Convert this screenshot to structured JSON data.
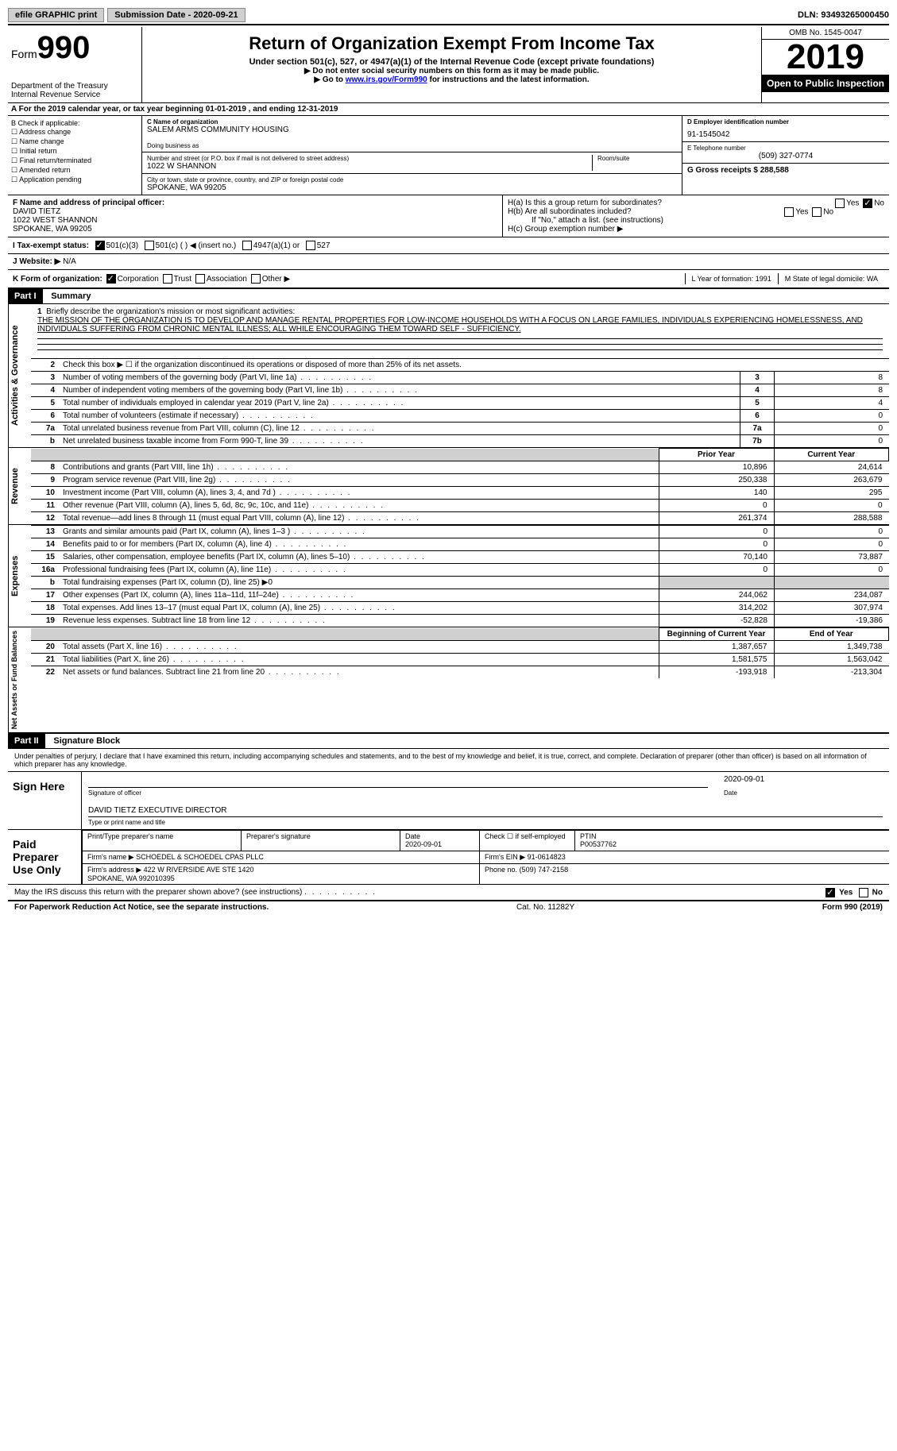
{
  "topbar": {
    "efile": "efile GRAPHIC print",
    "submission_label": "Submission Date - 2020-09-21",
    "dln_label": "DLN: 93493265000450"
  },
  "header": {
    "form_word": "Form",
    "form_num": "990",
    "dept": "Department of the Treasury\nInternal Revenue Service",
    "title": "Return of Organization Exempt From Income Tax",
    "subtitle": "Under section 501(c), 527, or 4947(a)(1) of the Internal Revenue Code (except private foundations)",
    "note1": "▶ Do not enter social security numbers on this form as it may be made public.",
    "note2_pre": "▶ Go to ",
    "note2_link": "www.irs.gov/Form990",
    "note2_post": " for instructions and the latest information.",
    "omb": "OMB No. 1545-0047",
    "year": "2019",
    "inspection": "Open to Public Inspection"
  },
  "row_a": "A For the 2019 calendar year, or tax year beginning 01-01-2019   , and ending 12-31-2019",
  "col_b": {
    "title": "B Check if applicable:",
    "items": [
      "Address change",
      "Name change",
      "Initial return",
      "Final return/terminated",
      "Amended return",
      "Application pending"
    ]
  },
  "block_c": {
    "name_label": "C Name of organization",
    "name": "SALEM ARMS COMMUNITY HOUSING",
    "dba_label": "Doing business as",
    "street_label": "Number and street (or P.O. box if mail is not delivered to street address)",
    "room_label": "Room/suite",
    "street": "1022 W SHANNON",
    "city_label": "City or town, state or province, country, and ZIP or foreign postal code",
    "city": "SPOKANE, WA  99205"
  },
  "block_d": {
    "ein_label": "D Employer identification number",
    "ein": "91-1545042",
    "phone_label": "E Telephone number",
    "phone": "(509) 327-0774",
    "receipts_label": "G Gross receipts $ 288,588"
  },
  "officer": {
    "label": "F Name and address of principal officer:",
    "name": "DAVID TIETZ",
    "street": "1022 WEST SHANNON",
    "city": "SPOKANE, WA  99205"
  },
  "h_block": {
    "ha": "H(a)  Is this a group return for subordinates?",
    "hb": "H(b)  Are all subordinates included?",
    "hb_note": "If \"No,\" attach a list. (see instructions)",
    "hc": "H(c)  Group exemption number ▶"
  },
  "status": {
    "i": "I   Tax-exempt status:",
    "opts": [
      "501(c)(3)",
      "501(c) (  ) ◀ (insert no.)",
      "4947(a)(1) or",
      "527"
    ]
  },
  "website": {
    "j": "J   Website: ▶",
    "val": "N/A"
  },
  "korg": {
    "k": "K Form of organization:",
    "opts": [
      "Corporation",
      "Trust",
      "Association",
      "Other ▶"
    ],
    "l_label": "L Year of formation: 1991",
    "m_label": "M State of legal domicile: WA"
  },
  "part1": {
    "header": "Part I",
    "title": "Summary",
    "q1": "Briefly describe the organization's mission or most significant activities:",
    "mission": "THE MISSION OF THE ORGANIZATION IS TO DEVELOP AND MANAGE RENTAL PROPERTIES FOR LOW-INCOME HOUSEHOLDS WITH A FOCUS ON LARGE FAMILIES, INDIVIDUALS EXPERIENCING HOMELESSNESS, AND INDIVIDUALS SUFFERING FROM CHRONIC MENTAL ILLNESS; ALL WHILE ENCOURAGING THEM TOWARD SELF - SUFFICIENCY.",
    "q2": "Check this box ▶ ☐  if the organization discontinued its operations or disposed of more than 25% of its net assets.",
    "gov_lines": [
      {
        "n": "3",
        "t": "Number of voting members of the governing body (Part VI, line 1a)",
        "box": "3",
        "v": "8"
      },
      {
        "n": "4",
        "t": "Number of independent voting members of the governing body (Part VI, line 1b)",
        "box": "4",
        "v": "8"
      },
      {
        "n": "5",
        "t": "Total number of individuals employed in calendar year 2019 (Part V, line 2a)",
        "box": "5",
        "v": "4"
      },
      {
        "n": "6",
        "t": "Total number of volunteers (estimate if necessary)",
        "box": "6",
        "v": "0"
      },
      {
        "n": "7a",
        "t": "Total unrelated business revenue from Part VIII, column (C), line 12",
        "box": "7a",
        "v": "0"
      },
      {
        "n": "b",
        "t": "Net unrelated business taxable income from Form 990-T, line 39",
        "box": "7b",
        "v": "0"
      }
    ],
    "col_prior": "Prior Year",
    "col_current": "Current Year",
    "revenue_lines": [
      {
        "n": "8",
        "t": "Contributions and grants (Part VIII, line 1h)",
        "p": "10,896",
        "c": "24,614"
      },
      {
        "n": "9",
        "t": "Program service revenue (Part VIII, line 2g)",
        "p": "250,338",
        "c": "263,679"
      },
      {
        "n": "10",
        "t": "Investment income (Part VIII, column (A), lines 3, 4, and 7d )",
        "p": "140",
        "c": "295"
      },
      {
        "n": "11",
        "t": "Other revenue (Part VIII, column (A), lines 5, 6d, 8c, 9c, 10c, and 11e)",
        "p": "0",
        "c": "0"
      },
      {
        "n": "12",
        "t": "Total revenue—add lines 8 through 11 (must equal Part VIII, column (A), line 12)",
        "p": "261,374",
        "c": "288,588"
      }
    ],
    "expense_lines": [
      {
        "n": "13",
        "t": "Grants and similar amounts paid (Part IX, column (A), lines 1–3 )",
        "p": "0",
        "c": "0"
      },
      {
        "n": "14",
        "t": "Benefits paid to or for members (Part IX, column (A), line 4)",
        "p": "0",
        "c": "0"
      },
      {
        "n": "15",
        "t": "Salaries, other compensation, employee benefits (Part IX, column (A), lines 5–10)",
        "p": "70,140",
        "c": "73,887"
      },
      {
        "n": "16a",
        "t": "Professional fundraising fees (Part IX, column (A), line 11e)",
        "p": "0",
        "c": "0"
      },
      {
        "n": "b",
        "t": "Total fundraising expenses (Part IX, column (D), line 25) ▶0",
        "shade": true
      },
      {
        "n": "17",
        "t": "Other expenses (Part IX, column (A), lines 11a–11d, 11f–24e)",
        "p": "244,062",
        "c": "234,087"
      },
      {
        "n": "18",
        "t": "Total expenses. Add lines 13–17 (must equal Part IX, column (A), line 25)",
        "p": "314,202",
        "c": "307,974"
      },
      {
        "n": "19",
        "t": "Revenue less expenses. Subtract line 18 from line 12",
        "p": "-52,828",
        "c": "-19,386"
      }
    ],
    "col_begin": "Beginning of Current Year",
    "col_end": "End of Year",
    "net_lines": [
      {
        "n": "20",
        "t": "Total assets (Part X, line 16)",
        "p": "1,387,657",
        "c": "1,349,738"
      },
      {
        "n": "21",
        "t": "Total liabilities (Part X, line 26)",
        "p": "1,581,575",
        "c": "1,563,042"
      },
      {
        "n": "22",
        "t": "Net assets or fund balances. Subtract line 21 from line 20",
        "p": "-193,918",
        "c": "-213,304"
      }
    ],
    "side_gov": "Activities & Governance",
    "side_rev": "Revenue",
    "side_exp": "Expenses",
    "side_net": "Net Assets or Fund Balances"
  },
  "part2": {
    "header": "Part II",
    "title": "Signature Block",
    "declaration": "Under penalties of perjury, I declare that I have examined this return, including accompanying schedules and statements, and to the best of my knowledge and belief, it is true, correct, and complete. Declaration of preparer (other than officer) is based on all information of which preparer has any knowledge.",
    "sign_here": "Sign Here",
    "sig_date": "2020-09-01",
    "sig_officer_label": "Signature of officer",
    "date_label": "Date",
    "officer_name": "DAVID TIETZ  EXECUTIVE DIRECTOR",
    "type_name_label": "Type or print name and title",
    "paid_preparer": "Paid Preparer Use Only",
    "prep_name_label": "Print/Type preparer's name",
    "prep_sig_label": "Preparer's signature",
    "prep_date_label": "Date",
    "prep_date": "2020-09-01",
    "self_emp": "Check ☐ if self-employed",
    "ptin_label": "PTIN",
    "ptin": "P00537762",
    "firm_name_label": "Firm's name    ▶",
    "firm_name": "SCHOEDEL & SCHOEDEL CPAS PLLC",
    "firm_ein_label": "Firm's EIN ▶",
    "firm_ein": "91-0614823",
    "firm_addr_label": "Firm's address ▶",
    "firm_addr": "422 W RIVERSIDE AVE STE 1420\nSPOKANE, WA  992010395",
    "firm_phone_label": "Phone no.",
    "firm_phone": "(509) 747-2158",
    "discuss": "May the IRS discuss this return with the preparer shown above? (see instructions)",
    "yes": "Yes",
    "no": "No"
  },
  "footer": {
    "left": "For Paperwork Reduction Act Notice, see the separate instructions.",
    "mid": "Cat. No. 11282Y",
    "right": "Form 990 (2019)"
  }
}
